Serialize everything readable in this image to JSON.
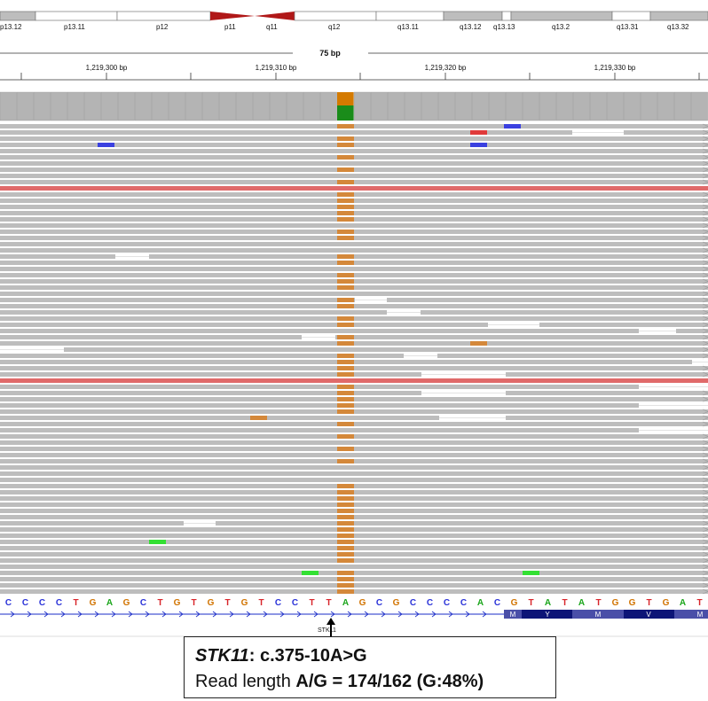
{
  "ideogram": {
    "bands": [
      "p13.12",
      "p13.11",
      "p12",
      "p11",
      "q11",
      "q12",
      "q13.11",
      "q13.12",
      "q13.13",
      "q13.2",
      "q13.31",
      "q13.32"
    ]
  },
  "ruler": {
    "span_label": "75 bp",
    "ticks": [
      "1,219,300 bp",
      "1,219,310 bp",
      "1,219,320 bp",
      "1,219,330 bp"
    ]
  },
  "sequence": {
    "bases": [
      "C",
      "C",
      "C",
      "C",
      "T",
      "G",
      "A",
      "G",
      "C",
      "T",
      "G",
      "T",
      "G",
      "T",
      "G",
      "T",
      "C",
      "C",
      "T",
      "T",
      "A",
      "G",
      "C",
      "G",
      "C",
      "C",
      "C",
      "C",
      "A",
      "C",
      "G",
      "T",
      "A",
      "T",
      "A",
      "T",
      "G",
      "G",
      "T",
      "G",
      "A",
      "T"
    ]
  },
  "gene": {
    "name": "STK11",
    "amino_acids": [
      "M",
      "Y",
      "M",
      "V",
      "M"
    ]
  },
  "annotation": {
    "gene": "STK11",
    "variant": ": c.375-10A>G",
    "read_prefix": "Read length ",
    "read_value": "A/G = 174/162 (G:48%)"
  },
  "colors": {
    "A": "#1aa51a",
    "C": "#2a32d8",
    "G": "#d17300",
    "T": "#d8242a",
    "read": "#bdbdbd",
    "mismatch_g": "#d4883a",
    "coverage": "#b4b4b4",
    "highlight_row": "#e06a6a",
    "strand_gene": "#1a2cc8"
  }
}
